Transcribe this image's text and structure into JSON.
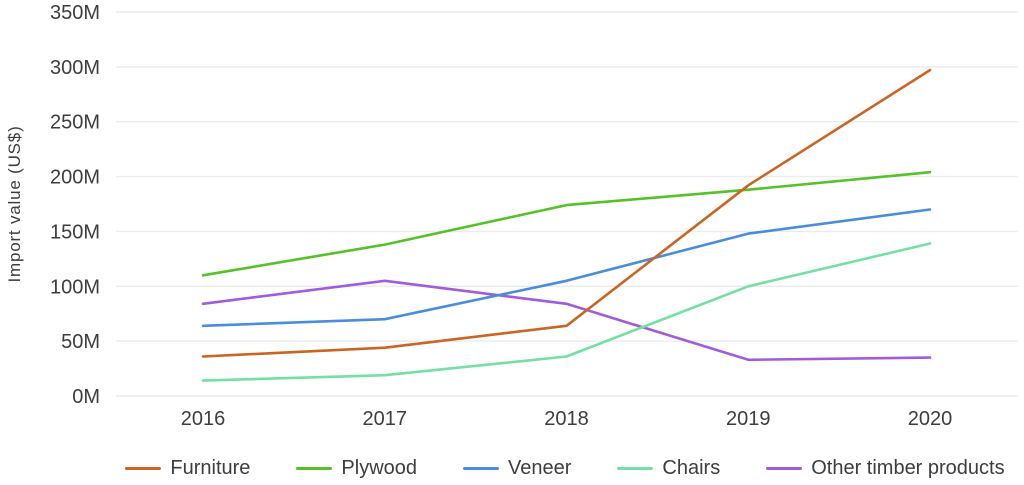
{
  "chart_data": {
    "type": "line",
    "title": "",
    "xlabel": "",
    "ylabel": "Import value (US$)",
    "categories": [
      "2016",
      "2017",
      "2018",
      "2019",
      "2020"
    ],
    "yticks": [
      {
        "value": 0,
        "label": "0M"
      },
      {
        "value": 50,
        "label": "50M"
      },
      {
        "value": 100,
        "label": "100M"
      },
      {
        "value": 150,
        "label": "150M"
      },
      {
        "value": 200,
        "label": "200M"
      },
      {
        "value": 250,
        "label": "250M"
      },
      {
        "value": 300,
        "label": "300M"
      },
      {
        "value": 350,
        "label": "350M"
      }
    ],
    "ylim": [
      0,
      350
    ],
    "grid": "horizontal",
    "legend_position": "bottom",
    "series": [
      {
        "name": "Furniture",
        "color": "#cb6524",
        "values": [
          36,
          44,
          64,
          192,
          297
        ]
      },
      {
        "name": "Plywood",
        "color": "#55c228",
        "values": [
          110,
          138,
          174,
          188,
          204
        ]
      },
      {
        "name": "Veneer",
        "color": "#4a8ddd",
        "values": [
          64,
          70,
          105,
          148,
          170
        ]
      },
      {
        "name": "Chairs",
        "color": "#74e0a4",
        "values": [
          14,
          19,
          36,
          100,
          139
        ]
      },
      {
        "name": "Other timber products",
        "color": "#a25cdb",
        "values": [
          84,
          105,
          84,
          33,
          35
        ]
      }
    ]
  },
  "colors": {
    "grid": "#ececec",
    "tick_text": "#3d3d3d",
    "axis_title_text": "#3d3d3d",
    "background": "#ffffff"
  }
}
